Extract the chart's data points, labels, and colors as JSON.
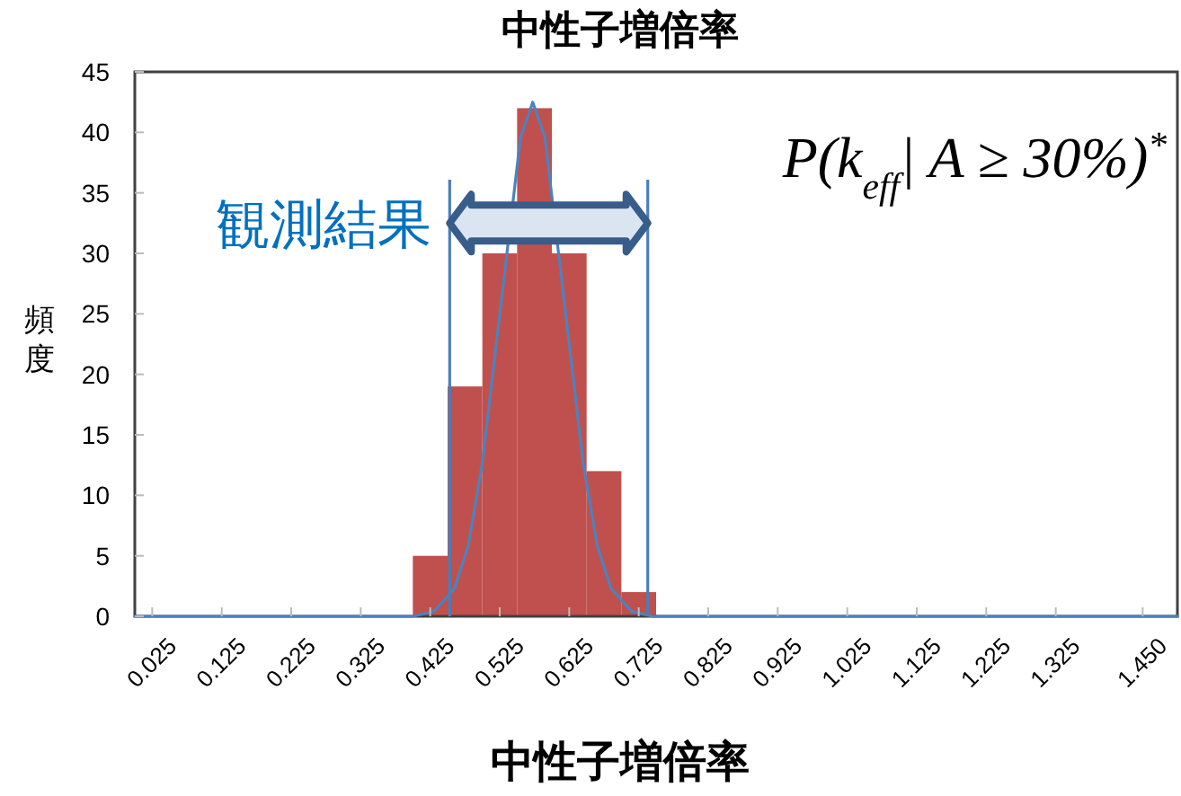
{
  "chart_data": {
    "type": "histogram",
    "title": "中性子増倍率",
    "xlabel": "中性子増倍率",
    "ylabel": "頻度",
    "bins": [
      0.4,
      0.45,
      0.5,
      0.55,
      0.6,
      0.65,
      0.7,
      0.75
    ],
    "values": [
      5,
      19,
      30,
      42,
      30,
      12,
      2
    ],
    "color": "#c0504d",
    "series": [
      {
        "type": "line",
        "color": "#4f81bd",
        "x": [
          0.0,
          0.3,
          0.35,
          0.4,
          0.43,
          0.46,
          0.48,
          0.5,
          0.52,
          0.555,
          0.5725,
          0.59,
          0.625,
          0.645,
          0.665,
          0.685,
          0.715,
          0.745,
          0.8,
          0.85,
          1.5
        ],
        "values": [
          0,
          0,
          0,
          0,
          0.4,
          2.3,
          5.9,
          12.7,
          22.5,
          39.6,
          42.5,
          39.6,
          22.5,
          12.7,
          5.9,
          2.3,
          0.4,
          0,
          0,
          0,
          0
        ]
      }
    ],
    "ref_lines": [
      {
        "axis": "x",
        "value": 0.453,
        "color": "#4a7ebb"
      },
      {
        "axis": "x",
        "value": 0.738,
        "color": "#4a7ebb"
      }
    ],
    "annotations": [
      "観測結果",
      "P(k$_{eff}$| A ≥ 30%)$^{*}$"
    ],
    "xlim": [
      0,
      1.5
    ],
    "ylim": [
      0,
      45
    ],
    "xticks": [
      {
        "value": 0.025,
        "label": "0.025"
      },
      {
        "value": 0.125,
        "label": "0.125"
      },
      {
        "value": 0.225,
        "label": "0.225"
      },
      {
        "value": 0.325,
        "label": "0.325"
      },
      {
        "value": 0.425,
        "label": "0.425"
      },
      {
        "value": 0.525,
        "label": "0.525"
      },
      {
        "value": 0.625,
        "label": "0.625"
      },
      {
        "value": 0.725,
        "label": "0.725"
      },
      {
        "value": 0.825,
        "label": "0.825"
      },
      {
        "value": 0.925,
        "label": "0.925"
      },
      {
        "value": 1.025,
        "label": "1.025"
      },
      {
        "value": 1.125,
        "label": "1.125"
      },
      {
        "value": 1.225,
        "label": "1.225"
      },
      {
        "value": 1.325,
        "label": "1.325"
      },
      {
        "value": 1.45,
        "label": "1.450"
      }
    ],
    "yticks": [
      0,
      5,
      10,
      15,
      20,
      25,
      30,
      35,
      40,
      45
    ]
  }
}
